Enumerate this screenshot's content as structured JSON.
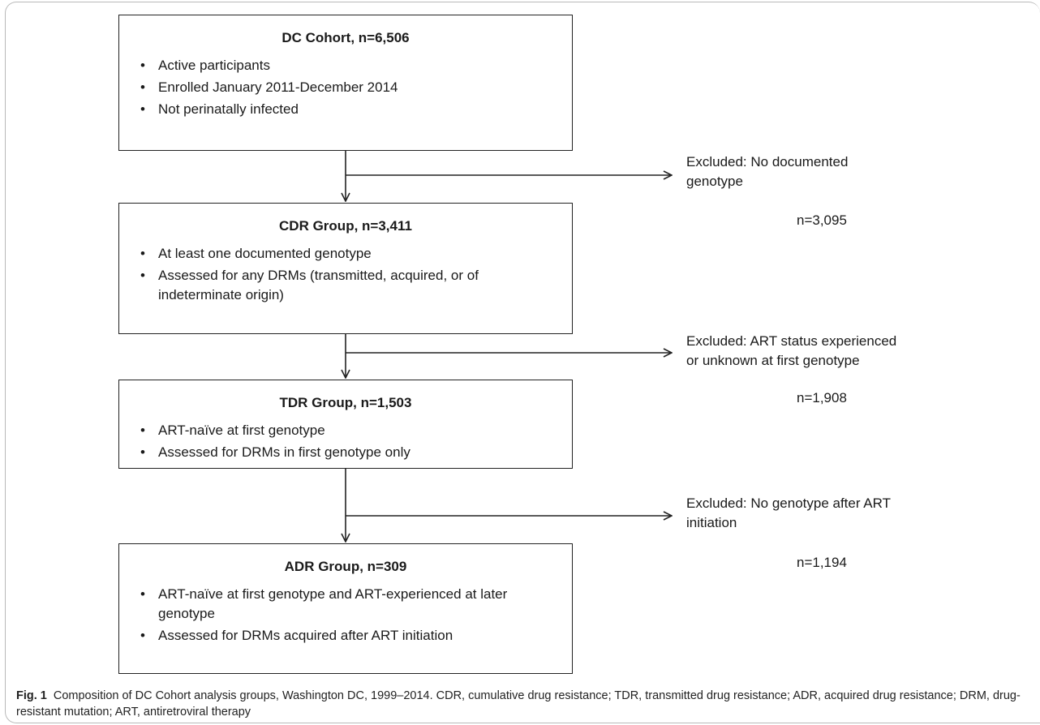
{
  "boxes": [
    {
      "title": "DC Cohort, n=6,506",
      "bullets": [
        "Active participants",
        "Enrolled January 2011-December 2014",
        "Not perinatally infected"
      ]
    },
    {
      "title": "CDR Group, n=3,411",
      "bullets": [
        "At least one documented genotype",
        "Assessed for any DRMs (transmitted, acquired, or of indeterminate origin)"
      ]
    },
    {
      "title": "TDR Group, n=1,503",
      "bullets": [
        "ART-naïve at first genotype",
        "Assessed for DRMs in first genotype only"
      ]
    },
    {
      "title": "ADR Group, n=309",
      "bullets": [
        "ART-naïve at first genotype and ART-experienced at later genotype",
        "Assessed for DRMs acquired after ART initiation"
      ]
    }
  ],
  "exclusions": [
    {
      "line1": "Excluded: No documented",
      "line2": "genotype",
      "n": "n=3,095"
    },
    {
      "line1": "Excluded: ART status experienced",
      "line2": "or unknown at first genotype",
      "n": "n=1,908"
    },
    {
      "line1": "Excluded: No genotype after ART",
      "line2": "initiation",
      "n": "n=1,194"
    }
  ],
  "caption": {
    "label": "Fig. 1",
    "text": "Composition of DC Cohort analysis groups, Washington DC, 1999–2014. CDR, cumulative drug resistance; TDR, transmitted drug resistance; ADR, acquired drug resistance; DRM, drug-resistant mutation; ART, antiretroviral therapy"
  }
}
